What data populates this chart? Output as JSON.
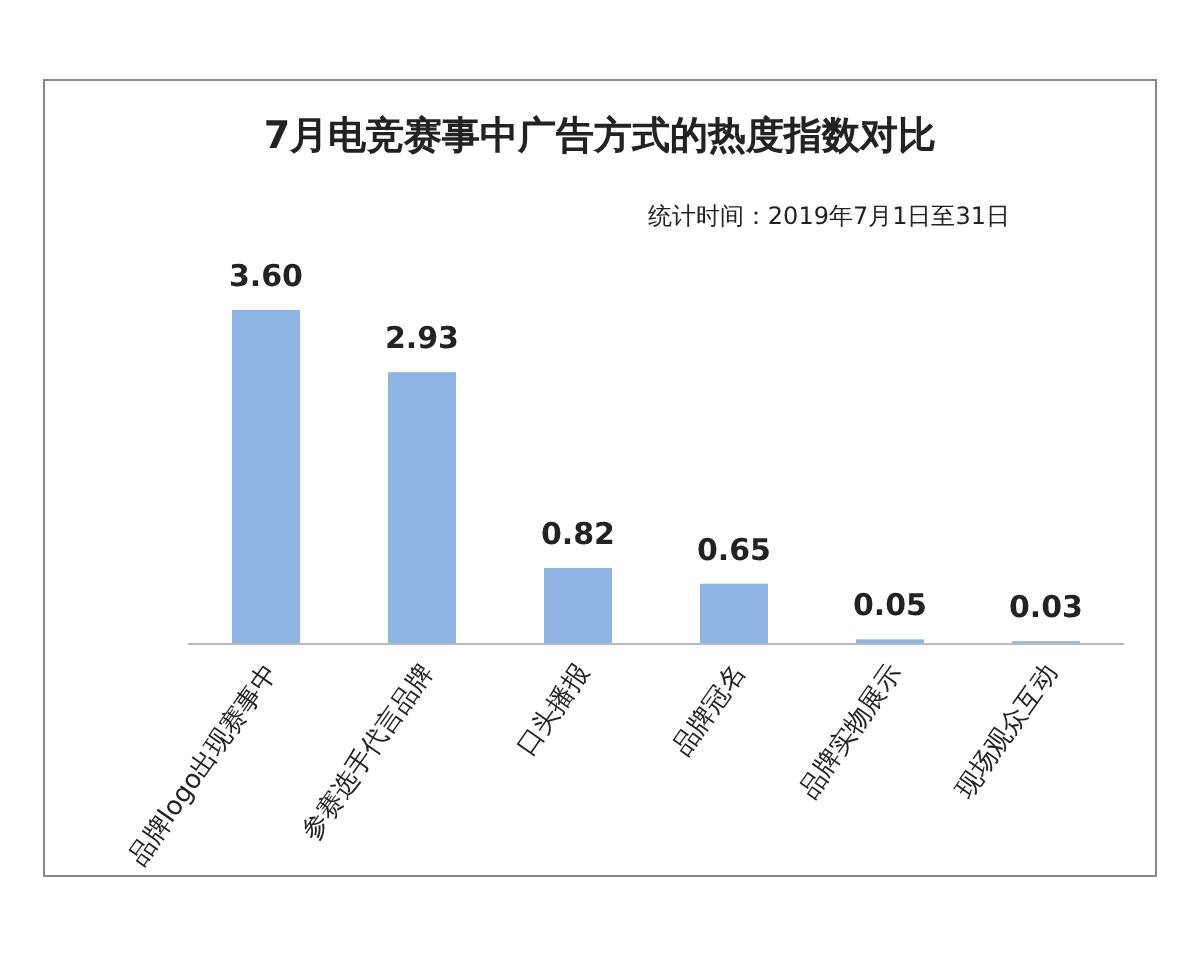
{
  "chart_data": {
    "type": "bar",
    "title": "7月电竞赛事中广告方式的热度指数对比",
    "subtitle": "统计时间：2019年7月1日至31日",
    "categories": [
      "品牌logo出现赛事中",
      "参赛选手代言品牌",
      "口头播报",
      "品牌冠名",
      "品牌实物展示",
      "现场观众互动"
    ],
    "values": [
      3.6,
      2.93,
      0.82,
      0.65,
      0.05,
      0.03
    ],
    "value_labels": [
      "3.60",
      "2.93",
      "0.82",
      "0.65",
      "0.05",
      "0.03"
    ],
    "color": "#8db4e2"
  }
}
